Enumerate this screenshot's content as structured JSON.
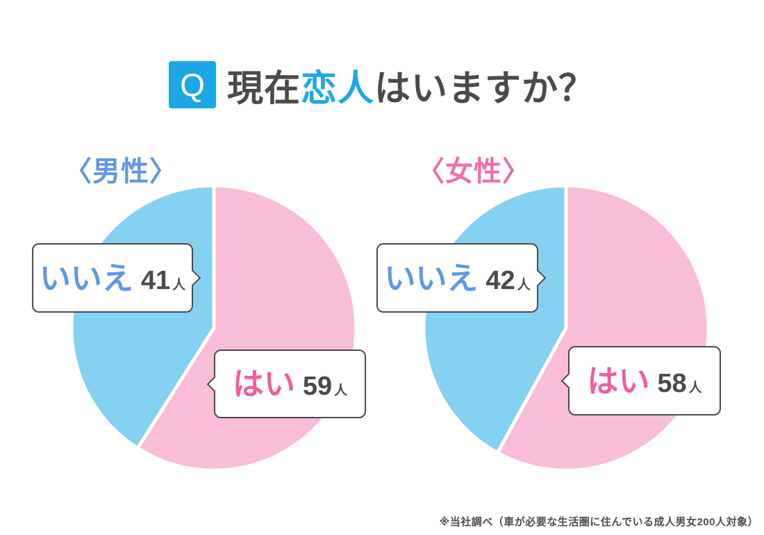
{
  "header": {
    "badge": "Q",
    "title_pre": "現在",
    "title_highlight": "恋人",
    "title_post": "はいますか？"
  },
  "chart_data": [
    {
      "type": "pie",
      "group_label": "〈男性〉",
      "slices": [
        {
          "label": "はい",
          "value": 59,
          "unit": "人",
          "color_key": "pie_pink"
        },
        {
          "label": "いいえ",
          "value": 41,
          "unit": "人",
          "color_key": "pie_blue"
        }
      ],
      "total": 100,
      "start_angle_deg_from_top": 0,
      "direction": "clockwise",
      "legend": "none",
      "grid": false
    },
    {
      "type": "pie",
      "group_label": "〈女性〉",
      "slices": [
        {
          "label": "はい",
          "value": 58,
          "unit": "人",
          "color_key": "pie_pink"
        },
        {
          "label": "いいえ",
          "value": 42,
          "unit": "人",
          "color_key": "pie_blue"
        }
      ],
      "total": 100,
      "start_angle_deg_from_top": 0,
      "direction": "clockwise",
      "legend": "none",
      "grid": false
    }
  ],
  "footnote": "※当社調べ（車が必要な生活圏に住んでいる成人男女200人対象）",
  "colors": {
    "accent_blue": "#1EA7E8",
    "pie_blue": "#85D1F2",
    "pie_pink": "#F9BDD8",
    "no_text_blue": "#6097E6",
    "yes_text_pink": "#EE5F9E",
    "female_label_pink": "#EE6FA7",
    "dark_text": "#4A4A4A"
  }
}
